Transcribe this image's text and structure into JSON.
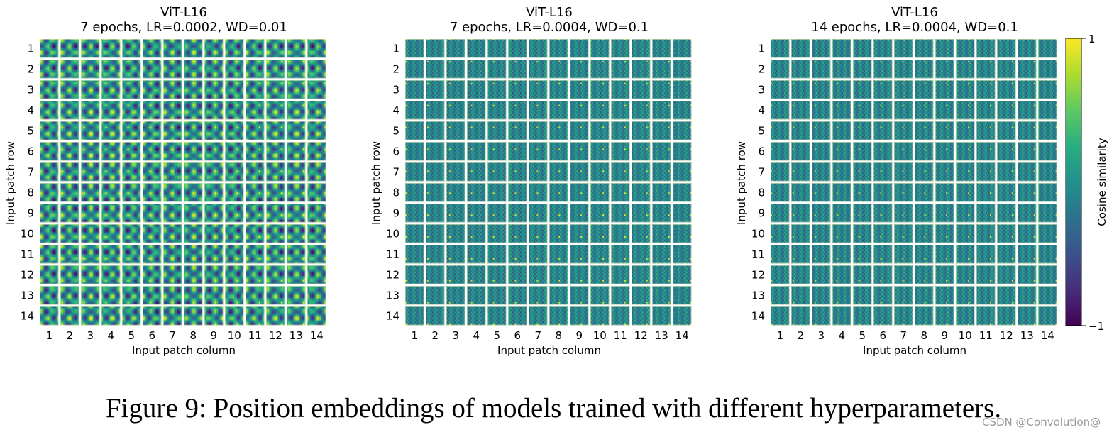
{
  "chart_data": [
    {
      "type": "heatmap",
      "title": "ViT-L16",
      "subtitle": "7 epochs, LR=0.0002, WD=0.01",
      "xlabel": "Input patch column",
      "ylabel": "Input patch row",
      "rows": [
        1,
        2,
        3,
        4,
        5,
        6,
        7,
        8,
        9,
        10,
        11,
        12,
        13,
        14
      ],
      "cols": [
        1,
        2,
        3,
        4,
        5,
        6,
        7,
        8,
        9,
        10,
        11,
        12,
        13,
        14
      ],
      "pattern": "smooth",
      "description_values": "each cell is a 14x14 cosine-similarity map of that patch's position embedding vs all others"
    },
    {
      "type": "heatmap",
      "title": "ViT-L16",
      "subtitle": "7 epochs, LR=0.0004, WD=0.1",
      "xlabel": "Input patch column",
      "ylabel": "Input patch row",
      "rows": [
        1,
        2,
        3,
        4,
        5,
        6,
        7,
        8,
        9,
        10,
        11,
        12,
        13,
        14
      ],
      "cols": [
        1,
        2,
        3,
        4,
        5,
        6,
        7,
        8,
        9,
        10,
        11,
        12,
        13,
        14
      ],
      "pattern": "fine"
    },
    {
      "type": "heatmap",
      "title": "ViT-L16",
      "subtitle": "14 epochs, LR=0.0004, WD=0.1",
      "xlabel": "Input patch column",
      "ylabel": "Input patch row",
      "rows": [
        1,
        2,
        3,
        4,
        5,
        6,
        7,
        8,
        9,
        10,
        11,
        12,
        13,
        14
      ],
      "cols": [
        1,
        2,
        3,
        4,
        5,
        6,
        7,
        8,
        9,
        10,
        11,
        12,
        13,
        14
      ],
      "pattern": "fine"
    }
  ],
  "colorbar": {
    "label": "Cosine similarity",
    "max_label": "1",
    "min_label": "−1",
    "range": [
      -1,
      1
    ],
    "colormap": "viridis"
  },
  "caption": "Figure 9: Position embeddings of models trained with different hyperparameters.",
  "watermark": "CSDN @Convolution@"
}
